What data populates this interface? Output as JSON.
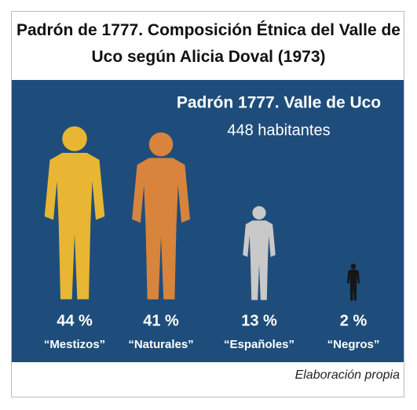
{
  "chart_data": {
    "type": "pictogram",
    "title": "Padrón de 1777. Composición Étnica del Valle de Uco según Alicia Doval (1973)",
    "subtitle": "Padrón 1777. Valle de Uco",
    "annotation": "448 habitantes",
    "categories": [
      "“Mestizos”",
      "“Naturales”",
      "“Españoles”",
      "“Negros”"
    ],
    "values": [
      44,
      41,
      13,
      2
    ],
    "value_labels": [
      "44 %",
      "41 %",
      "13 %",
      "2 %"
    ],
    "colors": [
      "#e8b632",
      "#d8843c",
      "#c9c9c9",
      "#161616"
    ],
    "source": "Elaboración propia"
  }
}
